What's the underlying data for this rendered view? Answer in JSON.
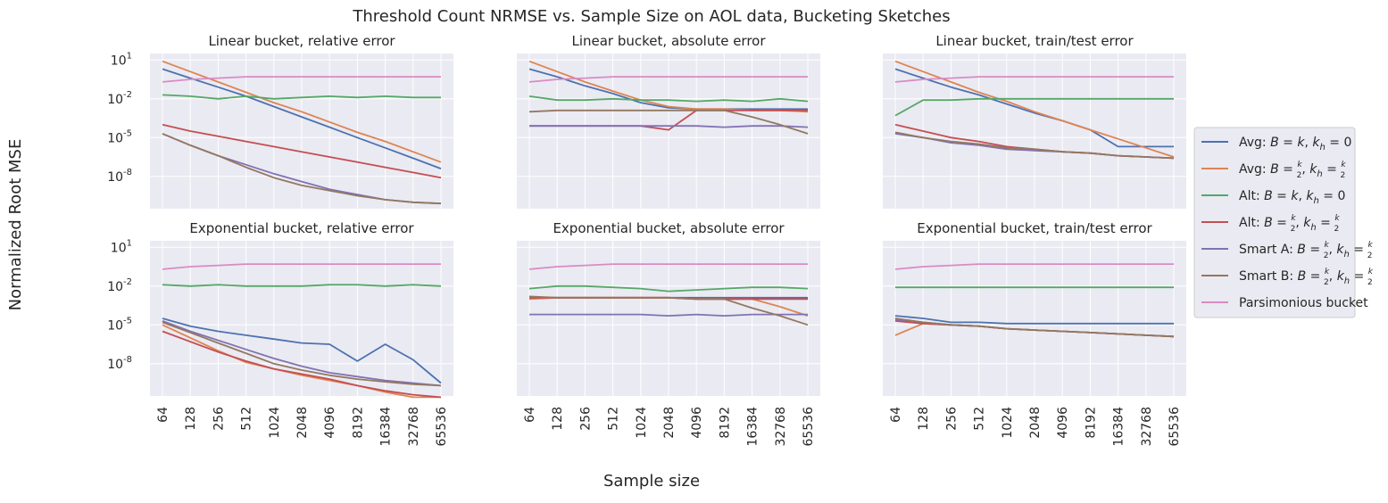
{
  "figure": {
    "title": "Threshold Count NRMSE vs. Sample Size on AOL data, Bucketing Sketches",
    "ylabel": "Normalized Root MSE",
    "xlabel": "Sample size"
  },
  "legend": {
    "placement": "right",
    "entries": [
      {
        "prefix": "Avg: ",
        "color": "#4c72b0",
        "kind": "eq"
      },
      {
        "prefix": "Avg: ",
        "color": "#dd8452",
        "kind": "half"
      },
      {
        "prefix": "Alt: ",
        "color": "#55a868",
        "kind": "eq"
      },
      {
        "prefix": "Alt: ",
        "color": "#c44e52",
        "kind": "half"
      },
      {
        "prefix": "Smart A: ",
        "color": "#8172b3",
        "kind": "half"
      },
      {
        "prefix": "Smart B: ",
        "color": "#937860",
        "kind": "half"
      },
      {
        "prefix": "Parsimonious bucket",
        "color": "#da8bc3",
        "kind": "plain"
      }
    ]
  },
  "chart_data": [
    {
      "type": "line",
      "title": "Linear bucket, relative error",
      "categories": [
        "64",
        "128",
        "256",
        "512",
        "1024",
        "2048",
        "4096",
        "8192",
        "16384",
        "32768",
        "65536"
      ],
      "y_scale": "log",
      "ylim_exp": [
        -10.5,
        1.5
      ],
      "yticks": [
        "10^1",
        "10^-2",
        "10^-5",
        "10^-8"
      ],
      "grid": true,
      "series": [
        {
          "color": "#4c72b0",
          "log10_values": [
            0.3,
            -0.4,
            -1.1,
            -1.8,
            -2.6,
            -3.4,
            -4.2,
            -5.0,
            -5.8,
            -6.6,
            -7.4
          ]
        },
        {
          "color": "#dd8452",
          "log10_values": [
            0.9,
            0.1,
            -0.7,
            -1.5,
            -2.3,
            -3.0,
            -3.8,
            -4.6,
            -5.3,
            -6.1,
            -6.9
          ]
        },
        {
          "color": "#55a868",
          "log10_values": [
            -1.7,
            -1.8,
            -2.0,
            -1.8,
            -2.0,
            -1.9,
            -1.8,
            -1.9,
            -1.8,
            -1.9,
            -1.9
          ]
        },
        {
          "color": "#c44e52",
          "log10_values": [
            -4.0,
            -4.5,
            -4.9,
            -5.3,
            -5.7,
            -6.1,
            -6.5,
            -6.9,
            -7.3,
            -7.7,
            -8.1
          ]
        },
        {
          "color": "#8172b3",
          "log10_values": [
            -4.7,
            -5.6,
            -6.4,
            -7.1,
            -7.8,
            -8.4,
            -9.0,
            -9.4,
            -9.8,
            -10.0,
            -10.1
          ]
        },
        {
          "color": "#937860",
          "log10_values": [
            -4.7,
            -5.6,
            -6.4,
            -7.3,
            -8.1,
            -8.7,
            -9.1,
            -9.5,
            -9.8,
            -10.0,
            -10.1
          ]
        },
        {
          "color": "#da8bc3",
          "log10_values": [
            -0.7,
            -0.5,
            -0.4,
            -0.3,
            -0.3,
            -0.3,
            -0.3,
            -0.3,
            -0.3,
            -0.3,
            -0.3
          ]
        }
      ]
    },
    {
      "type": "line",
      "title": "Linear bucket, absolute error",
      "categories": [
        "64",
        "128",
        "256",
        "512",
        "1024",
        "2048",
        "4096",
        "8192",
        "16384",
        "32768",
        "65536"
      ],
      "y_scale": "log",
      "ylim_exp": [
        -10.5,
        1.5
      ],
      "yticks": [],
      "grid": true,
      "series": [
        {
          "color": "#4c72b0",
          "log10_values": [
            0.3,
            -0.3,
            -1.0,
            -1.6,
            -2.3,
            -2.7,
            -2.8,
            -2.8,
            -2.8,
            -2.8,
            -2.8
          ]
        },
        {
          "color": "#dd8452",
          "log10_values": [
            0.9,
            0.1,
            -0.7,
            -1.4,
            -2.1,
            -2.6,
            -2.8,
            -2.8,
            -2.9,
            -2.9,
            -3.0
          ]
        },
        {
          "color": "#55a868",
          "log10_values": [
            -1.8,
            -2.1,
            -2.1,
            -2.0,
            -2.1,
            -2.1,
            -2.2,
            -2.1,
            -2.2,
            -2.0,
            -2.2
          ]
        },
        {
          "color": "#c44e52",
          "log10_values": [
            -4.1,
            -4.1,
            -4.1,
            -4.1,
            -4.1,
            -4.4,
            -2.9,
            -2.9,
            -2.9,
            -2.9,
            -2.9
          ]
        },
        {
          "color": "#8172b3",
          "log10_values": [
            -4.1,
            -4.1,
            -4.1,
            -4.1,
            -4.1,
            -4.1,
            -4.1,
            -4.2,
            -4.1,
            -4.1,
            -4.2
          ]
        },
        {
          "color": "#937860",
          "log10_values": [
            -3.0,
            -2.9,
            -2.9,
            -2.9,
            -2.9,
            -2.9,
            -2.9,
            -2.9,
            -3.4,
            -4.0,
            -4.7
          ]
        },
        {
          "color": "#da8bc3",
          "log10_values": [
            -0.7,
            -0.5,
            -0.4,
            -0.3,
            -0.3,
            -0.3,
            -0.3,
            -0.3,
            -0.3,
            -0.3,
            -0.3
          ]
        }
      ]
    },
    {
      "type": "line",
      "title": "Linear bucket, train/test error",
      "categories": [
        "64",
        "128",
        "256",
        "512",
        "1024",
        "2048",
        "4096",
        "8192",
        "16384",
        "32768",
        "65536"
      ],
      "y_scale": "log",
      "ylim_exp": [
        -10.5,
        1.5
      ],
      "yticks": [],
      "grid": true,
      "series": [
        {
          "color": "#4c72b0",
          "log10_values": [
            0.3,
            -0.4,
            -1.1,
            -1.7,
            -2.4,
            -3.1,
            -3.7,
            -4.4,
            -5.7,
            -5.7,
            -5.7
          ]
        },
        {
          "color": "#dd8452",
          "log10_values": [
            0.9,
            0.1,
            -0.7,
            -1.5,
            -2.2,
            -3.0,
            -3.7,
            -4.4,
            -5.1,
            -5.8,
            -6.5
          ]
        },
        {
          "color": "#55a868",
          "log10_values": [
            -3.3,
            -2.1,
            -2.1,
            -2.0,
            -2.0,
            -2.0,
            -2.0,
            -2.0,
            -2.0,
            -2.0,
            -2.0
          ]
        },
        {
          "color": "#c44e52",
          "log10_values": [
            -4.0,
            -4.5,
            -5.0,
            -5.3,
            -5.7,
            -5.9,
            -6.1,
            -6.2,
            -6.4,
            -6.5,
            -6.6
          ]
        },
        {
          "color": "#8172b3",
          "log10_values": [
            -4.7,
            -5.0,
            -5.4,
            -5.6,
            -5.9,
            -6.0,
            -6.1,
            -6.2,
            -6.4,
            -6.5,
            -6.6
          ]
        },
        {
          "color": "#937860",
          "log10_values": [
            -4.6,
            -5.0,
            -5.3,
            -5.5,
            -5.8,
            -5.9,
            -6.1,
            -6.2,
            -6.4,
            -6.5,
            -6.6
          ]
        },
        {
          "color": "#da8bc3",
          "log10_values": [
            -0.7,
            -0.5,
            -0.4,
            -0.3,
            -0.3,
            -0.3,
            -0.3,
            -0.3,
            -0.3,
            -0.3,
            -0.3
          ]
        }
      ]
    },
    {
      "type": "line",
      "title": "Exponential bucket, relative error",
      "categories": [
        "64",
        "128",
        "256",
        "512",
        "1024",
        "2048",
        "4096",
        "8192",
        "16384",
        "32768",
        "65536"
      ],
      "y_scale": "log",
      "ylim_exp": [
        -10.5,
        1.5
      ],
      "yticks": [
        "10^1",
        "10^-2",
        "10^-5",
        "10^-8"
      ],
      "grid": true,
      "series": [
        {
          "color": "#4c72b0",
          "log10_values": [
            -4.5,
            -5.1,
            -5.5,
            -5.8,
            -6.1,
            -6.4,
            -6.5,
            -7.8,
            -6.5,
            -7.7,
            -9.5
          ]
        },
        {
          "color": "#dd8452",
          "log10_values": [
            -5.0,
            -6.0,
            -7.0,
            -7.9,
            -8.4,
            -8.9,
            -9.3,
            -9.7,
            -10.2,
            -10.6,
            -10.6
          ]
        },
        {
          "color": "#55a868",
          "log10_values": [
            -1.9,
            -2.0,
            -1.9,
            -2.0,
            -2.0,
            -2.0,
            -1.9,
            -1.9,
            -2.0,
            -1.9,
            -2.0
          ]
        },
        {
          "color": "#c44e52",
          "log10_values": [
            -5.5,
            -6.3,
            -7.1,
            -7.8,
            -8.4,
            -8.8,
            -9.2,
            -9.7,
            -10.1,
            -10.4,
            -10.6
          ]
        },
        {
          "color": "#8172b3",
          "log10_values": [
            -4.7,
            -5.5,
            -6.2,
            -6.9,
            -7.6,
            -8.2,
            -8.7,
            -9.0,
            -9.3,
            -9.5,
            -9.7
          ]
        },
        {
          "color": "#937860",
          "log10_values": [
            -4.8,
            -5.6,
            -6.4,
            -7.2,
            -8.0,
            -8.5,
            -8.9,
            -9.2,
            -9.4,
            -9.6,
            -9.7
          ]
        },
        {
          "color": "#da8bc3",
          "log10_values": [
            -0.7,
            -0.5,
            -0.4,
            -0.3,
            -0.3,
            -0.3,
            -0.3,
            -0.3,
            -0.3,
            -0.3,
            -0.3
          ]
        }
      ]
    },
    {
      "type": "line",
      "title": "Exponential bucket, absolute error",
      "categories": [
        "64",
        "128",
        "256",
        "512",
        "1024",
        "2048",
        "4096",
        "8192",
        "16384",
        "32768",
        "65536"
      ],
      "y_scale": "log",
      "ylim_exp": [
        -10.5,
        1.5
      ],
      "yticks": [],
      "grid": true,
      "series": [
        {
          "color": "#4c72b0",
          "log10_values": [
            -2.9,
            -2.9,
            -2.9,
            -2.9,
            -2.9,
            -2.9,
            -2.9,
            -2.9,
            -2.9,
            -2.9,
            -2.9
          ]
        },
        {
          "color": "#dd8452",
          "log10_values": [
            -3.0,
            -2.9,
            -2.9,
            -2.9,
            -2.9,
            -2.9,
            -3.0,
            -3.0,
            -3.0,
            -3.6,
            -4.3
          ]
        },
        {
          "color": "#55a868",
          "log10_values": [
            -2.2,
            -2.0,
            -2.0,
            -2.1,
            -2.2,
            -2.4,
            -2.3,
            -2.2,
            -2.1,
            -2.1,
            -2.2
          ]
        },
        {
          "color": "#c44e52",
          "log10_values": [
            -2.9,
            -2.9,
            -2.9,
            -2.9,
            -2.9,
            -2.9,
            -3.0,
            -3.0,
            -3.0,
            -3.0,
            -3.0
          ]
        },
        {
          "color": "#8172b3",
          "log10_values": [
            -4.2,
            -4.2,
            -4.2,
            -4.2,
            -4.2,
            -4.3,
            -4.2,
            -4.3,
            -4.2,
            -4.2,
            -4.2
          ]
        },
        {
          "color": "#937860",
          "log10_values": [
            -2.8,
            -2.9,
            -2.9,
            -2.9,
            -2.9,
            -2.9,
            -3.0,
            -3.0,
            -3.7,
            -4.3,
            -5.0
          ]
        },
        {
          "color": "#da8bc3",
          "log10_values": [
            -0.7,
            -0.5,
            -0.4,
            -0.3,
            -0.3,
            -0.3,
            -0.3,
            -0.3,
            -0.3,
            -0.3,
            -0.3
          ]
        }
      ]
    },
    {
      "type": "line",
      "title": "Exponential bucket, train/test error",
      "categories": [
        "64",
        "128",
        "256",
        "512",
        "1024",
        "2048",
        "4096",
        "8192",
        "16384",
        "32768",
        "65536"
      ],
      "y_scale": "log",
      "ylim_exp": [
        -10.5,
        1.5
      ],
      "yticks": [],
      "grid": true,
      "series": [
        {
          "color": "#4c72b0",
          "log10_values": [
            -4.3,
            -4.5,
            -4.8,
            -4.8,
            -4.9,
            -4.9,
            -4.9,
            -4.9,
            -4.9,
            -4.9,
            -4.9
          ]
        },
        {
          "color": "#dd8452",
          "log10_values": [
            -5.8,
            -4.9,
            -5.0,
            -5.1,
            -5.3,
            -5.4,
            -5.5,
            -5.6,
            -5.7,
            -5.8,
            -5.9
          ]
        },
        {
          "color": "#55a868",
          "log10_values": [
            -2.1,
            -2.1,
            -2.1,
            -2.1,
            -2.1,
            -2.1,
            -2.1,
            -2.1,
            -2.1,
            -2.1,
            -2.1
          ]
        },
        {
          "color": "#c44e52",
          "log10_values": [
            -4.7,
            -4.9,
            -5.0,
            -5.1,
            -5.3,
            -5.4,
            -5.5,
            -5.6,
            -5.7,
            -5.8,
            -5.9
          ]
        },
        {
          "color": "#8172b3",
          "log10_values": [
            -4.6,
            -4.8,
            -5.0,
            -5.1,
            -5.3,
            -5.4,
            -5.5,
            -5.6,
            -5.7,
            -5.8,
            -5.9
          ]
        },
        {
          "color": "#937860",
          "log10_values": [
            -4.5,
            -4.8,
            -5.0,
            -5.1,
            -5.3,
            -5.4,
            -5.5,
            -5.6,
            -5.7,
            -5.8,
            -5.9
          ]
        },
        {
          "color": "#da8bc3",
          "log10_values": [
            -0.7,
            -0.5,
            -0.4,
            -0.3,
            -0.3,
            -0.3,
            -0.3,
            -0.3,
            -0.3,
            -0.3,
            -0.3
          ]
        }
      ]
    }
  ]
}
